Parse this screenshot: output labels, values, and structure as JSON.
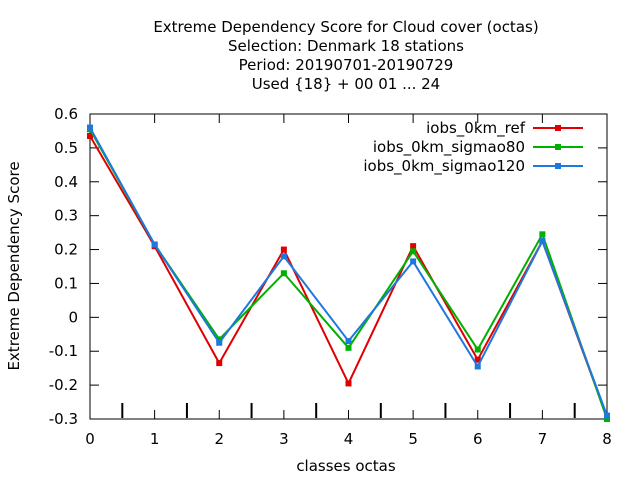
{
  "chart_data": {
    "type": "line",
    "title_lines": [
      "Extreme Dependency Score  for Cloud cover (octas)",
      "Selection: Denmark     18 stations",
      "Period: 20190701-20190729",
      "Used {18} + 00 01 ... 24"
    ],
    "xlabel": "classes octas",
    "ylabel": "Extreme Dependency Score",
    "x": [
      0,
      1,
      2,
      3,
      4,
      5,
      6,
      7,
      8
    ],
    "xlim": [
      0,
      8
    ],
    "ylim": [
      -0.3,
      0.6
    ],
    "xticks": [
      0,
      1,
      2,
      3,
      4,
      5,
      6,
      7,
      8
    ],
    "yticks": [
      -0.3,
      -0.2,
      -0.1,
      0,
      0.1,
      0.2,
      0.3,
      0.4,
      0.5,
      0.6
    ],
    "xtick_labels": [
      "0",
      "1",
      "2",
      "3",
      "4",
      "5",
      "6",
      "7",
      "8"
    ],
    "ytick_labels": [
      "-0.3",
      "-0.2",
      "-0.1",
      "0",
      "0.1",
      "0.2",
      "0.3",
      "0.4",
      "0.5",
      "0.6"
    ],
    "grid": false,
    "legend_position": "top-right",
    "series": [
      {
        "name": "iobs_0km_ref",
        "color": "#e00000",
        "values": [
          0.535,
          0.21,
          -0.135,
          0.2,
          -0.195,
          0.21,
          -0.125,
          0.225,
          -0.295
        ]
      },
      {
        "name": "iobs_0km_sigmao80",
        "color": "#00b000",
        "values": [
          0.555,
          0.215,
          -0.065,
          0.13,
          -0.09,
          0.195,
          -0.095,
          0.245,
          -0.3
        ]
      },
      {
        "name": "iobs_0km_sigmao120",
        "color": "#1e78e0",
        "values": [
          0.56,
          0.215,
          -0.075,
          0.18,
          -0.07,
          0.165,
          -0.145,
          0.225,
          -0.29
        ]
      }
    ]
  }
}
